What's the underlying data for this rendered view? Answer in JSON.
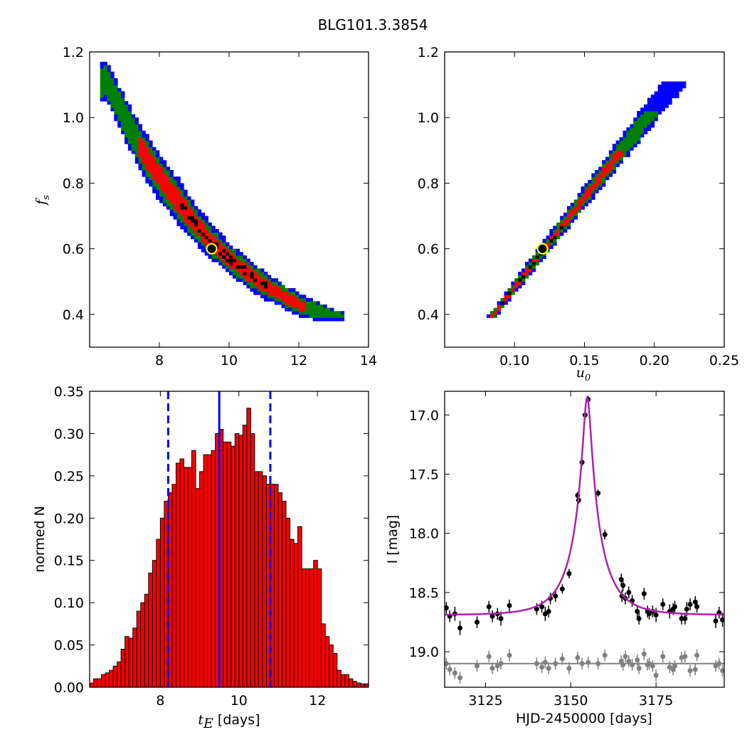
{
  "figure": {
    "title": "BLG101.3.3854"
  },
  "colors": {
    "level3": "#0000ff",
    "level2": "#008000",
    "level1": "#ff0000",
    "best": "#000000",
    "marker_ring": "#ffff00",
    "hist_bar": "#ff0000",
    "hist_line": "#0000ff",
    "model_curve": "#aa22aa",
    "data_points": "#000000",
    "residual_points": "#808080",
    "residual_line": "#808080"
  },
  "chart_data": [
    {
      "id": "tE_fs",
      "type": "heatmap",
      "xlabel": "",
      "ylabel_main": "f",
      "ylabel_sub": "s",
      "xlim": [
        6.0,
        14.0
      ],
      "ylim": [
        0.3,
        1.2
      ],
      "xticks": [
        8,
        10,
        12,
        14
      ],
      "yticks": [
        0.4,
        0.6,
        0.8,
        1.0,
        1.2
      ],
      "ytick_labels": [
        "0.4",
        "0.6",
        "0.8",
        "1.0",
        "1.2"
      ],
      "band": {
        "ref_x": [
          6.5,
          7.0,
          7.5,
          8.0,
          8.5,
          9.0,
          9.5,
          10.0,
          10.5,
          11.0,
          11.5,
          12.0,
          12.5,
          13.2
        ],
        "ref_y": [
          1.11,
          1.0,
          0.9,
          0.82,
          0.75,
          0.68,
          0.62,
          0.57,
          0.53,
          0.49,
          0.46,
          0.43,
          0.41,
          0.395
        ],
        "half_width": [
          0.05,
          0.055,
          0.06,
          0.06,
          0.06,
          0.05,
          0.045,
          0.04,
          0.04,
          0.035,
          0.03,
          0.03,
          0.025,
          0.01
        ],
        "x_start": 6.3,
        "x_end": 13.3
      },
      "marker": {
        "x": 9.5,
        "y": 0.6
      }
    },
    {
      "id": "u0_fs",
      "type": "heatmap",
      "xlabel_main": "u",
      "xlabel_sub": "0",
      "xlim": [
        0.05,
        0.25
      ],
      "ylim": [
        0.3,
        1.2
      ],
      "xticks": [
        0.1,
        0.15,
        0.2,
        0.25
      ],
      "xtick_labels": [
        "0.10",
        "0.15",
        "0.20",
        "0.25"
      ],
      "yticks": [
        0.4,
        0.6,
        0.8,
        1.0,
        1.2
      ],
      "ytick_labels": [
        "0.4",
        "0.6",
        "0.8",
        "1.0",
        "1.2"
      ],
      "band": {
        "u0_at_fs": [
          0.083,
          0.215
        ],
        "fs_range": [
          0.39,
          1.11
        ],
        "half_width": [
          0.002,
          0.006
        ]
      },
      "marker": {
        "x": 0.12,
        "y": 0.6
      }
    },
    {
      "id": "tE_hist",
      "type": "bar",
      "xlabel_main": "t",
      "xlabel_sub": "E",
      "xlabel_suffix": "[days]",
      "ylabel": "normed N",
      "xlim": [
        6.2,
        13.3
      ],
      "ylim": [
        0.0,
        0.35
      ],
      "xticks": [
        8,
        10,
        12
      ],
      "yticks": [
        0.0,
        0.05,
        0.1,
        0.15,
        0.2,
        0.25,
        0.3,
        0.35
      ],
      "ytick_labels": [
        "0.00",
        "0.05",
        "0.10",
        "0.15",
        "0.20",
        "0.25",
        "0.30",
        "0.35"
      ],
      "bin_start": 6.2,
      "bin_width": 0.1,
      "values": [
        0.005,
        0.01,
        0.01,
        0.015,
        0.017,
        0.02,
        0.025,
        0.03,
        0.045,
        0.06,
        0.058,
        0.07,
        0.09,
        0.1,
        0.11,
        0.135,
        0.15,
        0.175,
        0.2,
        0.22,
        0.23,
        0.24,
        0.265,
        0.27,
        0.26,
        0.26,
        0.28,
        0.235,
        0.255,
        0.275,
        0.275,
        0.28,
        0.3,
        0.305,
        0.29,
        0.29,
        0.285,
        0.3,
        0.298,
        0.31,
        0.33,
        0.3,
        0.255,
        0.255,
        0.25,
        0.24,
        0.24,
        0.24,
        0.23,
        0.22,
        0.2,
        0.175,
        0.17,
        0.19,
        0.14,
        0.14,
        0.14,
        0.15,
        0.14,
        0.075,
        0.06,
        0.05,
        0.04,
        0.02,
        0.015,
        0.015,
        0.01,
        0.007,
        0.005,
        0.004,
        0.004,
        0.005
      ],
      "median": 9.5,
      "lower": 8.2,
      "upper": 10.8
    },
    {
      "id": "lightcurve",
      "type": "scatter",
      "xlabel": "HJD-2450000 [days]",
      "ylabel": "I [mag]",
      "xlim": [
        3113,
        3195
      ],
      "ylim": [
        19.3,
        16.8
      ],
      "xticks": [
        3125,
        3150,
        3175
      ],
      "yticks": [
        17.0,
        17.5,
        18.0,
        18.5,
        19.0
      ],
      "ytick_labels": [
        "17.0",
        "17.5",
        "18.0",
        "18.5",
        "19.0"
      ],
      "model": {
        "t0": 3154.8,
        "tE": 9.5,
        "u0": 0.12,
        "fs": 0.6,
        "baseline": 18.69
      },
      "data": [
        {
          "x": 3113.5,
          "y": 18.63,
          "err": 0.05
        },
        {
          "x": 3114.5,
          "y": 18.7,
          "err": 0.05
        },
        {
          "x": 3116,
          "y": 18.68,
          "err": 0.06
        },
        {
          "x": 3117.5,
          "y": 18.8,
          "err": 0.06
        },
        {
          "x": 3122.5,
          "y": 18.75,
          "err": 0.05
        },
        {
          "x": 3126,
          "y": 18.62,
          "err": 0.05
        },
        {
          "x": 3127,
          "y": 18.7,
          "err": 0.05
        },
        {
          "x": 3128.5,
          "y": 18.68,
          "err": 0.05
        },
        {
          "x": 3129.5,
          "y": 18.72,
          "err": 0.06
        },
        {
          "x": 3132,
          "y": 18.61,
          "err": 0.05
        },
        {
          "x": 3140,
          "y": 18.64,
          "err": 0.05
        },
        {
          "x": 3141.5,
          "y": 18.62,
          "err": 0.05
        },
        {
          "x": 3142.5,
          "y": 18.68,
          "err": 0.06
        },
        {
          "x": 3143.5,
          "y": 18.66,
          "err": 0.05
        },
        {
          "x": 3144,
          "y": 18.55,
          "err": 0.05
        },
        {
          "x": 3145.5,
          "y": 18.53,
          "err": 0.05
        },
        {
          "x": 3147.5,
          "y": 18.47,
          "err": 0.04
        },
        {
          "x": 3149.5,
          "y": 18.34,
          "err": 0.04
        },
        {
          "x": 3152,
          "y": 17.68,
          "err": 0.03
        },
        {
          "x": 3152.3,
          "y": 17.72,
          "err": 0.03
        },
        {
          "x": 3153.3,
          "y": 17.4,
          "err": 0.03
        },
        {
          "x": 3154.2,
          "y": 17.0,
          "err": 0.03
        },
        {
          "x": 3155.1,
          "y": 16.87,
          "err": 0.03
        },
        {
          "x": 3158,
          "y": 17.66,
          "err": 0.03
        },
        {
          "x": 3160,
          "y": 18.01,
          "err": 0.04
        },
        {
          "x": 3164.8,
          "y": 18.39,
          "err": 0.05
        },
        {
          "x": 3165.3,
          "y": 18.44,
          "err": 0.05
        },
        {
          "x": 3165,
          "y": 18.53,
          "err": 0.05
        },
        {
          "x": 3166,
          "y": 18.55,
          "err": 0.05
        },
        {
          "x": 3167,
          "y": 18.5,
          "err": 0.05
        },
        {
          "x": 3168,
          "y": 18.57,
          "err": 0.05
        },
        {
          "x": 3169.5,
          "y": 18.66,
          "err": 0.05
        },
        {
          "x": 3170,
          "y": 18.72,
          "err": 0.05
        },
        {
          "x": 3171.5,
          "y": 18.51,
          "err": 0.05
        },
        {
          "x": 3172.5,
          "y": 18.66,
          "err": 0.05
        },
        {
          "x": 3173,
          "y": 18.68,
          "err": 0.05
        },
        {
          "x": 3174,
          "y": 18.66,
          "err": 0.05
        },
        {
          "x": 3175,
          "y": 18.69,
          "err": 0.06
        },
        {
          "x": 3177,
          "y": 18.6,
          "err": 0.05
        },
        {
          "x": 3179,
          "y": 18.66,
          "err": 0.06
        },
        {
          "x": 3180,
          "y": 18.64,
          "err": 0.05
        },
        {
          "x": 3180.5,
          "y": 18.62,
          "err": 0.05
        },
        {
          "x": 3182.5,
          "y": 18.72,
          "err": 0.05
        },
        {
          "x": 3183.5,
          "y": 18.72,
          "err": 0.05
        },
        {
          "x": 3184,
          "y": 18.64,
          "err": 0.06
        },
        {
          "x": 3185,
          "y": 18.6,
          "err": 0.05
        },
        {
          "x": 3186.5,
          "y": 18.58,
          "err": 0.05
        },
        {
          "x": 3187,
          "y": 18.62,
          "err": 0.05
        },
        {
          "x": 3192.5,
          "y": 18.74,
          "err": 0.06
        },
        {
          "x": 3193.5,
          "y": 18.67,
          "err": 0.05
        },
        {
          "x": 3194.5,
          "y": 18.73,
          "err": 0.06
        }
      ],
      "residual_offset": 19.1,
      "residuals": [
        {
          "x": 3113.5,
          "y": 19.1,
          "err": 0.05
        },
        {
          "x": 3114.5,
          "y": 19.15,
          "err": 0.05
        },
        {
          "x": 3116,
          "y": 19.18,
          "err": 0.05
        },
        {
          "x": 3117.5,
          "y": 19.22,
          "err": 0.05
        },
        {
          "x": 3122.5,
          "y": 19.12,
          "err": 0.05
        },
        {
          "x": 3126,
          "y": 19.04,
          "err": 0.05
        },
        {
          "x": 3127,
          "y": 19.14,
          "err": 0.05
        },
        {
          "x": 3128.5,
          "y": 19.12,
          "err": 0.05
        },
        {
          "x": 3129.5,
          "y": 19.1,
          "err": 0.05
        },
        {
          "x": 3132,
          "y": 19.03,
          "err": 0.05
        },
        {
          "x": 3140,
          "y": 19.1,
          "err": 0.05
        },
        {
          "x": 3141.5,
          "y": 19.13,
          "err": 0.05
        },
        {
          "x": 3142.5,
          "y": 19.09,
          "err": 0.05
        },
        {
          "x": 3143.5,
          "y": 19.14,
          "err": 0.05
        },
        {
          "x": 3145.5,
          "y": 19.1,
          "err": 0.05
        },
        {
          "x": 3147.5,
          "y": 19.06,
          "err": 0.05
        },
        {
          "x": 3149.5,
          "y": 19.14,
          "err": 0.05
        },
        {
          "x": 3152,
          "y": 19.05,
          "err": 0.05
        },
        {
          "x": 3153.3,
          "y": 19.1,
          "err": 0.05
        },
        {
          "x": 3155.1,
          "y": 19.09,
          "err": 0.05
        },
        {
          "x": 3158,
          "y": 19.1,
          "err": 0.05
        },
        {
          "x": 3160,
          "y": 19.03,
          "err": 0.05
        },
        {
          "x": 3164.8,
          "y": 19.08,
          "err": 0.05
        },
        {
          "x": 3165.3,
          "y": 19.11,
          "err": 0.05
        },
        {
          "x": 3166,
          "y": 19.04,
          "err": 0.05
        },
        {
          "x": 3167,
          "y": 19.08,
          "err": 0.05
        },
        {
          "x": 3168,
          "y": 19.11,
          "err": 0.05
        },
        {
          "x": 3169.5,
          "y": 19.07,
          "err": 0.05
        },
        {
          "x": 3170,
          "y": 19.14,
          "err": 0.05
        },
        {
          "x": 3171.5,
          "y": 19.02,
          "err": 0.05
        },
        {
          "x": 3172.5,
          "y": 19.11,
          "err": 0.05
        },
        {
          "x": 3173,
          "y": 19.1,
          "err": 0.05
        },
        {
          "x": 3174,
          "y": 19.12,
          "err": 0.05
        },
        {
          "x": 3175,
          "y": 19.2,
          "err": 0.05
        },
        {
          "x": 3177,
          "y": 19.04,
          "err": 0.05
        },
        {
          "x": 3179,
          "y": 19.13,
          "err": 0.05
        },
        {
          "x": 3180,
          "y": 19.15,
          "err": 0.05
        },
        {
          "x": 3180.5,
          "y": 19.12,
          "err": 0.05
        },
        {
          "x": 3182.5,
          "y": 19.05,
          "err": 0.05
        },
        {
          "x": 3183.5,
          "y": 19.04,
          "err": 0.05
        },
        {
          "x": 3185,
          "y": 19.16,
          "err": 0.05
        },
        {
          "x": 3186.5,
          "y": 19.15,
          "err": 0.05
        },
        {
          "x": 3187,
          "y": 19.03,
          "err": 0.05
        },
        {
          "x": 3192.5,
          "y": 19.12,
          "err": 0.05
        },
        {
          "x": 3193.5,
          "y": 19.1,
          "err": 0.05
        },
        {
          "x": 3194.5,
          "y": 19.16,
          "err": 0.05
        }
      ]
    }
  ]
}
